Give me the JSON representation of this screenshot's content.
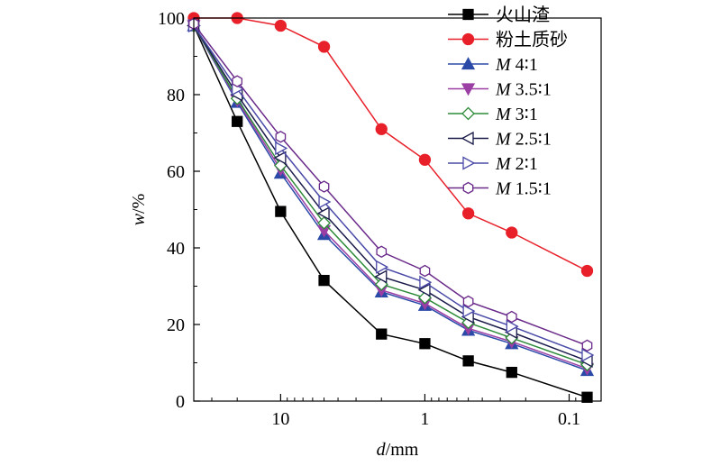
{
  "chart_data": {
    "type": "line",
    "x_scale": "log-reversed",
    "xlabel": {
      "italic": "d",
      "rest": "/mm"
    },
    "ylabel": {
      "italic": "w",
      "rest": "/%"
    },
    "xlim": [
      40,
      0.06
    ],
    "ylim": [
      0,
      100
    ],
    "x_ticks": [
      {
        "value": 10,
        "label": "10"
      },
      {
        "value": 1,
        "label": "1"
      },
      {
        "value": 0.1,
        "label": "0.1"
      }
    ],
    "y_ticks": [
      {
        "value": 0,
        "label": "0"
      },
      {
        "value": 20,
        "label": "20"
      },
      {
        "value": 40,
        "label": "40"
      },
      {
        "value": 60,
        "label": "60"
      },
      {
        "value": 80,
        "label": "80"
      },
      {
        "value": 100,
        "label": "100"
      }
    ],
    "legend_position": "top-right",
    "x": [
      40,
      20,
      10,
      5,
      2,
      1,
      0.5,
      0.25,
      0.075
    ],
    "series": [
      {
        "name": "火山渣",
        "name_italic": "",
        "name_rest": "火山渣",
        "color": "#000000",
        "marker": "square-filled",
        "values": [
          98,
          73,
          49.5,
          31.5,
          17.5,
          15,
          10.5,
          7.5,
          1
        ]
      },
      {
        "name": "粉土质砂",
        "name_italic": "",
        "name_rest": "粉土质砂",
        "color": "#e8202a",
        "marker": "circle-filled",
        "values": [
          100,
          100,
          98,
          92.5,
          71,
          63,
          49,
          44,
          34
        ]
      },
      {
        "name": "M 4∶1",
        "name_italic": "M",
        "name_rest": " 4∶1",
        "color": "#2b4aa8",
        "marker": "triangle-up-filled",
        "values": [
          98,
          78,
          59.5,
          43.5,
          28.5,
          25,
          18.5,
          15,
          8
        ]
      },
      {
        "name": "M 3.5∶1",
        "name_italic": "M",
        "name_rest": " 3.5∶1",
        "color": "#9b3fa5",
        "marker": "triangle-down-filled",
        "values": [
          98,
          78.5,
          60.5,
          44.5,
          29,
          25.5,
          19,
          15.5,
          8.5
        ]
      },
      {
        "name": "M 3∶1",
        "name_italic": "M",
        "name_rest": " 3∶1",
        "color": "#2e8b3a",
        "marker": "diamond-open",
        "values": [
          98,
          79,
          61.5,
          46.5,
          30.5,
          27,
          20.5,
          16.5,
          9.5
        ]
      },
      {
        "name": "M 2.5∶1",
        "name_italic": "M",
        "name_rest": " 2.5∶1",
        "color": "#1a1a4a",
        "marker": "triangle-left-open",
        "values": [
          98,
          80,
          63.5,
          49,
          32.5,
          29,
          22,
          18,
          10.5
        ]
      },
      {
        "name": "M 2∶1",
        "name_italic": "M",
        "name_rest": " 2∶1",
        "color": "#4a4aa8",
        "marker": "triangle-right-open",
        "values": [
          98,
          81.5,
          66,
          52,
          35,
          31,
          23.5,
          19.5,
          12
        ]
      },
      {
        "name": "M 1.5∶1",
        "name_italic": "M",
        "name_rest": " 1.5∶1",
        "color": "#6a2a8a",
        "marker": "hexagon-open",
        "values": [
          98.5,
          83.5,
          69,
          56,
          39,
          34,
          26,
          22,
          14.5
        ]
      }
    ]
  }
}
